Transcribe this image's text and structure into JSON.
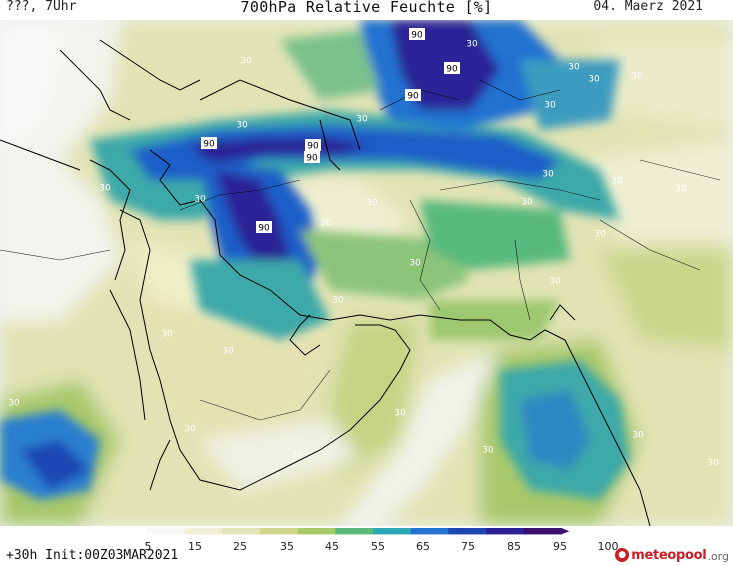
{
  "header": {
    "left": "???, 7Uhr",
    "title": "700hPa Relative Feuchte [%]",
    "right": "04. Maerz 2021"
  },
  "footer": {
    "run_info": "+30h Init:00Z03MAR2021",
    "brand_name": "meteopool",
    "brand_tld": ".org"
  },
  "legend": {
    "tick_labels": [
      "5",
      "15",
      "25",
      "35",
      "45",
      "55",
      "65",
      "75",
      "85",
      "95",
      "100"
    ],
    "colors": [
      "#f7f7f7",
      "#f0efd8",
      "#e3e4b6",
      "#cfd58a",
      "#a9c86a",
      "#58b97d",
      "#2ea6b5",
      "#2472d2",
      "#1e46b4",
      "#2a2296",
      "#3b0f6e"
    ]
  },
  "map": {
    "contour_labels_30": [
      "30",
      "30",
      "30",
      "30",
      "30",
      "30",
      "30",
      "30",
      "30",
      "30",
      "30",
      "30",
      "30",
      "30",
      "30",
      "30",
      "30",
      "30",
      "30",
      "30",
      "30",
      "30",
      "30",
      "30",
      "30",
      "30",
      "30",
      "30",
      "30"
    ],
    "contour_labels_90": [
      "90",
      "90",
      "90",
      "90",
      "90",
      "90",
      "90"
    ]
  }
}
